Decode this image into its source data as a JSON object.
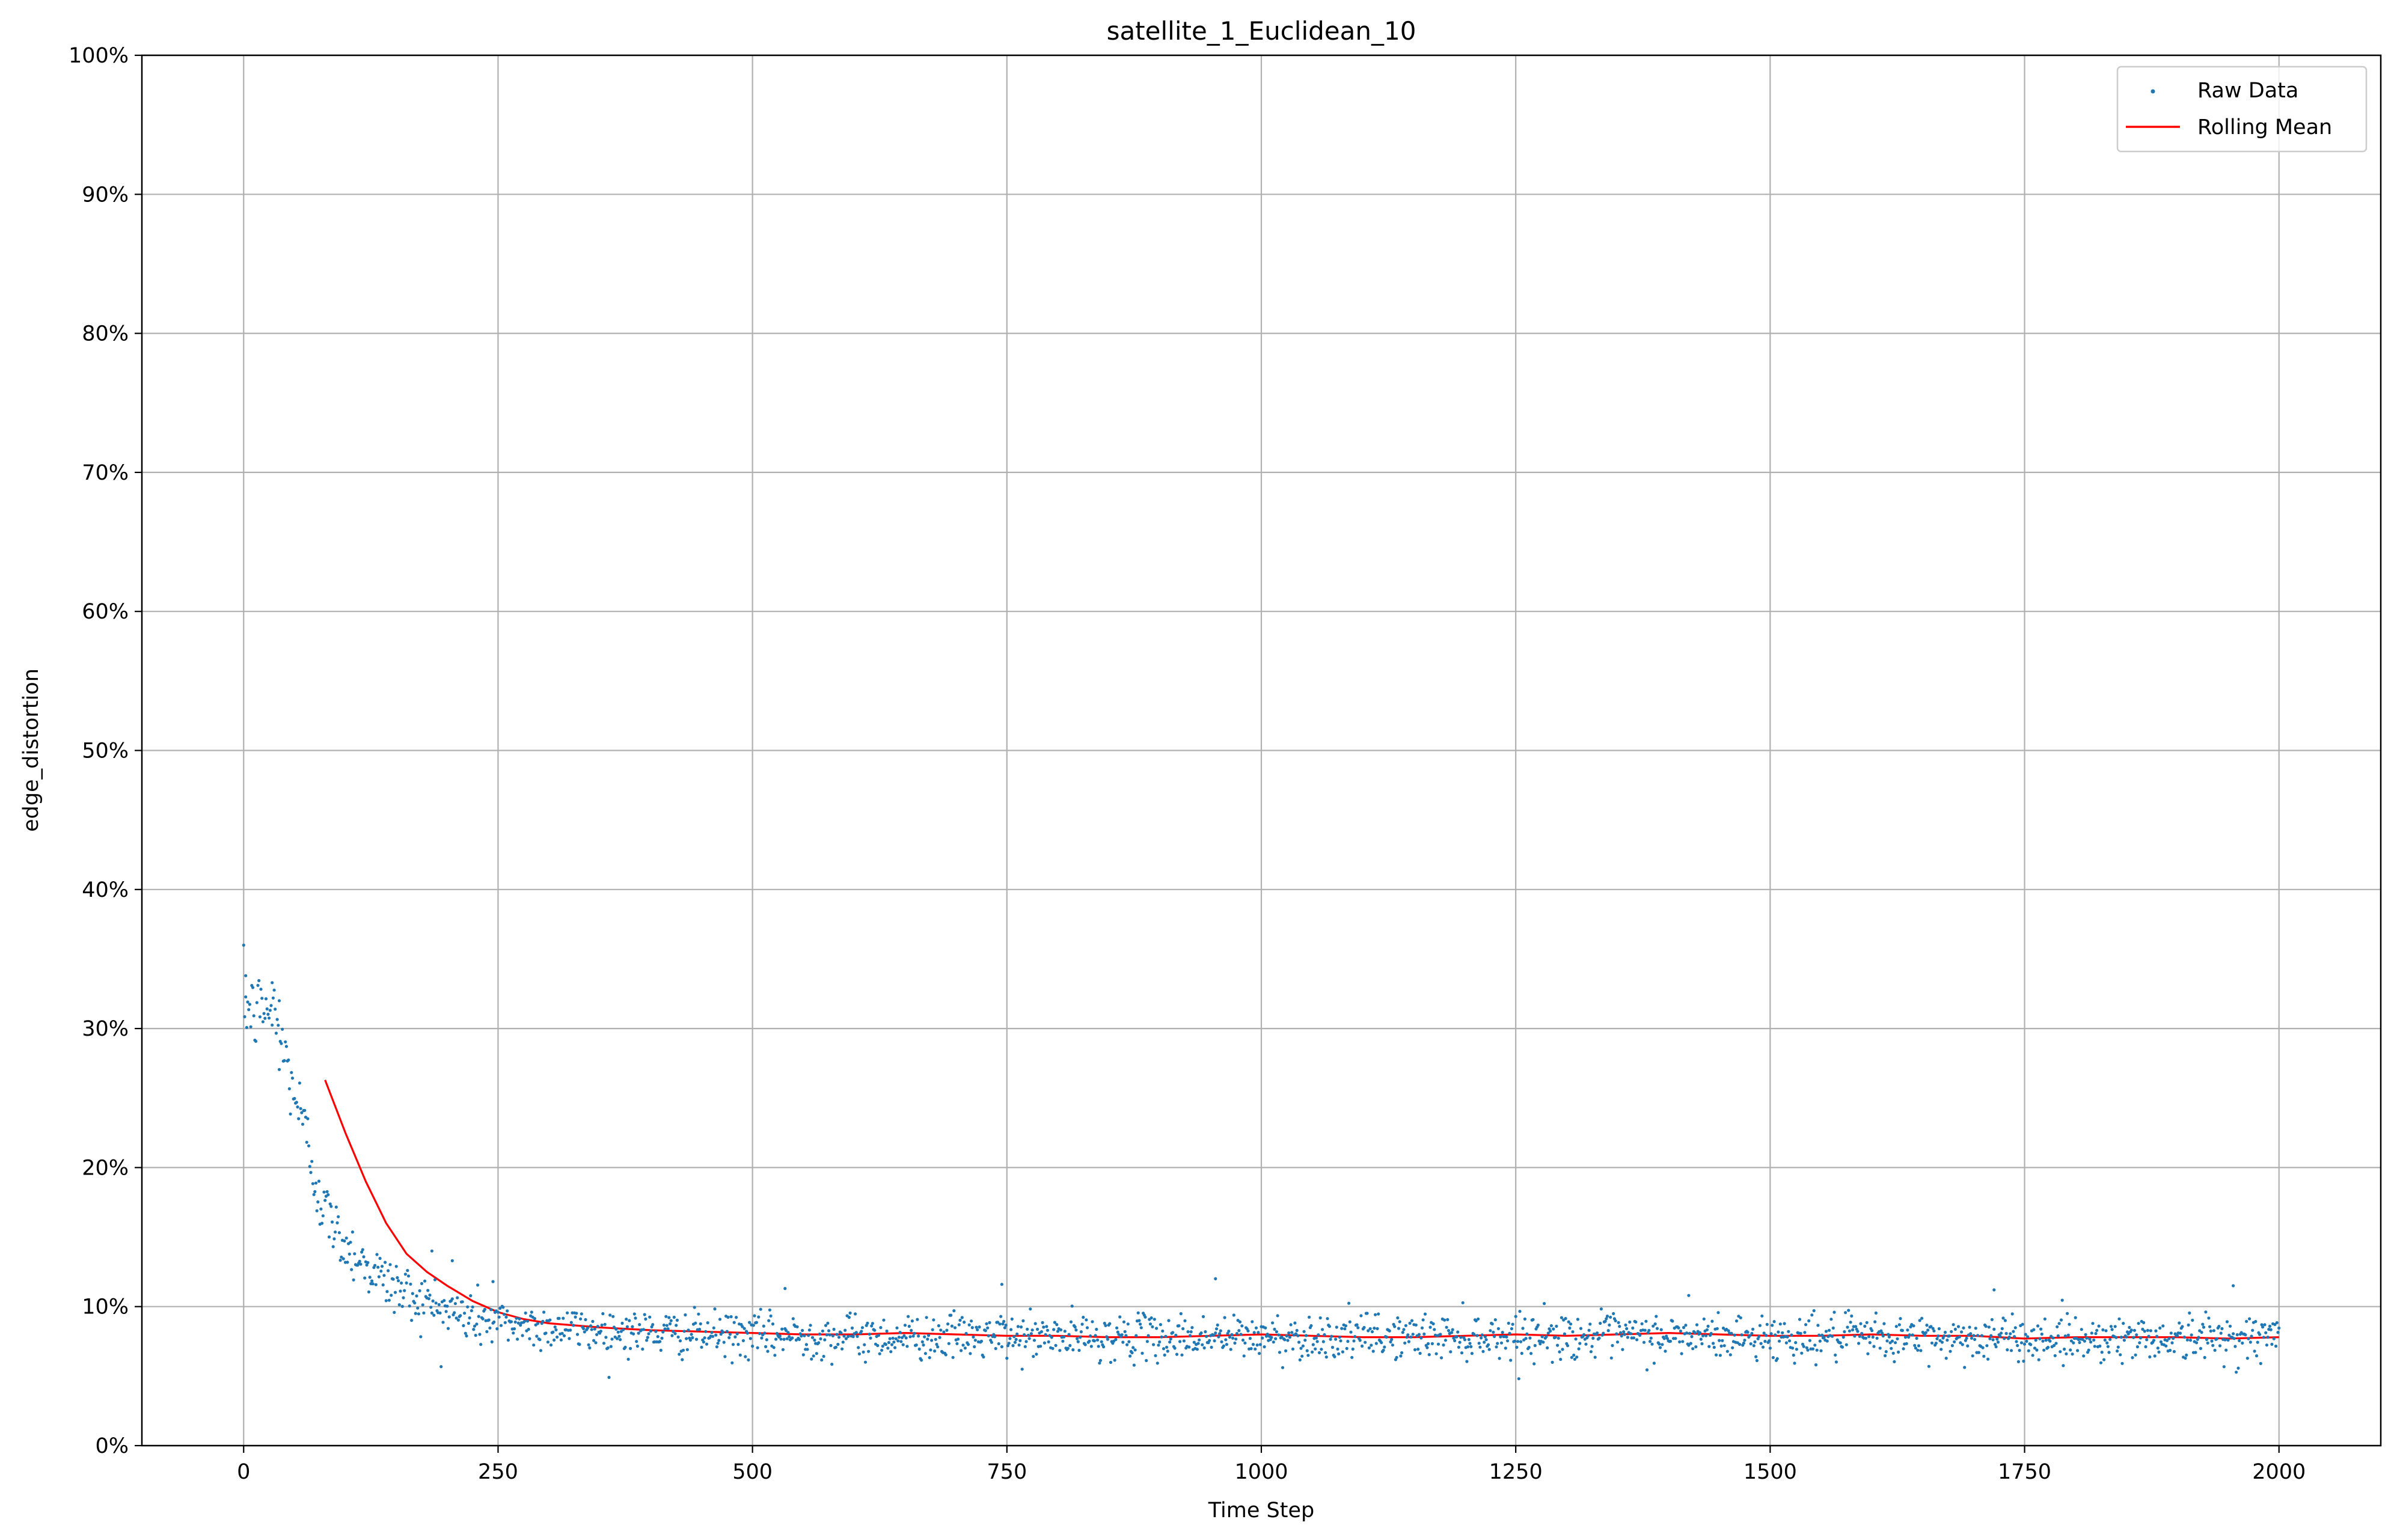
{
  "chart_data": {
    "type": "scatter",
    "title": "satellite_1_Euclidean_10",
    "xlabel": "Time Step",
    "ylabel": "edge_distortion",
    "xlim": [
      -100,
      2100
    ],
    "ylim": [
      0,
      1
    ],
    "x_ticks": [
      0,
      250,
      500,
      750,
      1000,
      1250,
      1500,
      1750,
      2000
    ],
    "x_tick_labels": [
      "0",
      "250",
      "500",
      "750",
      "1000",
      "1250",
      "1500",
      "1750",
      "2000"
    ],
    "y_ticks": [
      0,
      0.1,
      0.2,
      0.3,
      0.4,
      0.5,
      0.6,
      0.7,
      0.8,
      0.9,
      1.0
    ],
    "y_tick_labels": [
      "0%",
      "10%",
      "20%",
      "30%",
      "40%",
      "50%",
      "60%",
      "70%",
      "80%",
      "90%",
      "100%"
    ],
    "grid": true,
    "legend_position": "top-right",
    "series": [
      {
        "name": "Raw Data",
        "style": "points",
        "color": "#1f77b4",
        "x_start": 0,
        "x_end": 2000,
        "profile": [
          [
            0,
            0.32
          ],
          [
            10,
            0.31
          ],
          [
            20,
            0.315
          ],
          [
            30,
            0.31
          ],
          [
            40,
            0.28
          ],
          [
            50,
            0.255
          ],
          [
            60,
            0.225
          ],
          [
            70,
            0.195
          ],
          [
            80,
            0.17
          ],
          [
            90,
            0.155
          ],
          [
            100,
            0.145
          ],
          [
            120,
            0.13
          ],
          [
            140,
            0.118
          ],
          [
            160,
            0.11
          ],
          [
            180,
            0.103
          ],
          [
            200,
            0.097
          ],
          [
            225,
            0.092
          ],
          [
            250,
            0.089
          ],
          [
            300,
            0.085
          ],
          [
            350,
            0.083
          ],
          [
            400,
            0.081
          ],
          [
            500,
            0.079
          ],
          [
            750,
            0.078
          ],
          [
            1000,
            0.078
          ],
          [
            1250,
            0.079
          ],
          [
            1500,
            0.078
          ],
          [
            1750,
            0.077
          ],
          [
            2000,
            0.078
          ]
        ],
        "noise_sd": 0.008,
        "outliers": [
          [
            2,
            0.338
          ],
          [
            28,
            0.333
          ],
          [
            35,
            0.32
          ],
          [
            185,
            0.14
          ],
          [
            205,
            0.133
          ],
          [
            245,
            0.118
          ],
          [
            532,
            0.113
          ],
          [
            745,
            0.116
          ],
          [
            955,
            0.12
          ],
          [
            1420,
            0.108
          ],
          [
            1720,
            0.112
          ],
          [
            1955,
            0.115
          ]
        ]
      },
      {
        "name": "Rolling Mean",
        "style": "line",
        "color": "#ff0000",
        "x": [
          80,
          100,
          120,
          140,
          160,
          180,
          200,
          225,
          250,
          275,
          300,
          350,
          400,
          450,
          500,
          550,
          600,
          650,
          700,
          750,
          800,
          850,
          900,
          950,
          1000,
          1050,
          1100,
          1150,
          1200,
          1250,
          1300,
          1350,
          1400,
          1450,
          1500,
          1550,
          1600,
          1650,
          1700,
          1750,
          1800,
          1850,
          1900,
          1950,
          2000
        ],
        "y": [
          0.263,
          0.225,
          0.19,
          0.16,
          0.138,
          0.125,
          0.115,
          0.104,
          0.096,
          0.091,
          0.088,
          0.085,
          0.083,
          0.082,
          0.081,
          0.08,
          0.08,
          0.081,
          0.08,
          0.079,
          0.079,
          0.078,
          0.078,
          0.079,
          0.08,
          0.079,
          0.078,
          0.078,
          0.079,
          0.08,
          0.079,
          0.08,
          0.081,
          0.08,
          0.079,
          0.079,
          0.08,
          0.079,
          0.079,
          0.077,
          0.078,
          0.078,
          0.078,
          0.077,
          0.078
        ]
      }
    ]
  }
}
